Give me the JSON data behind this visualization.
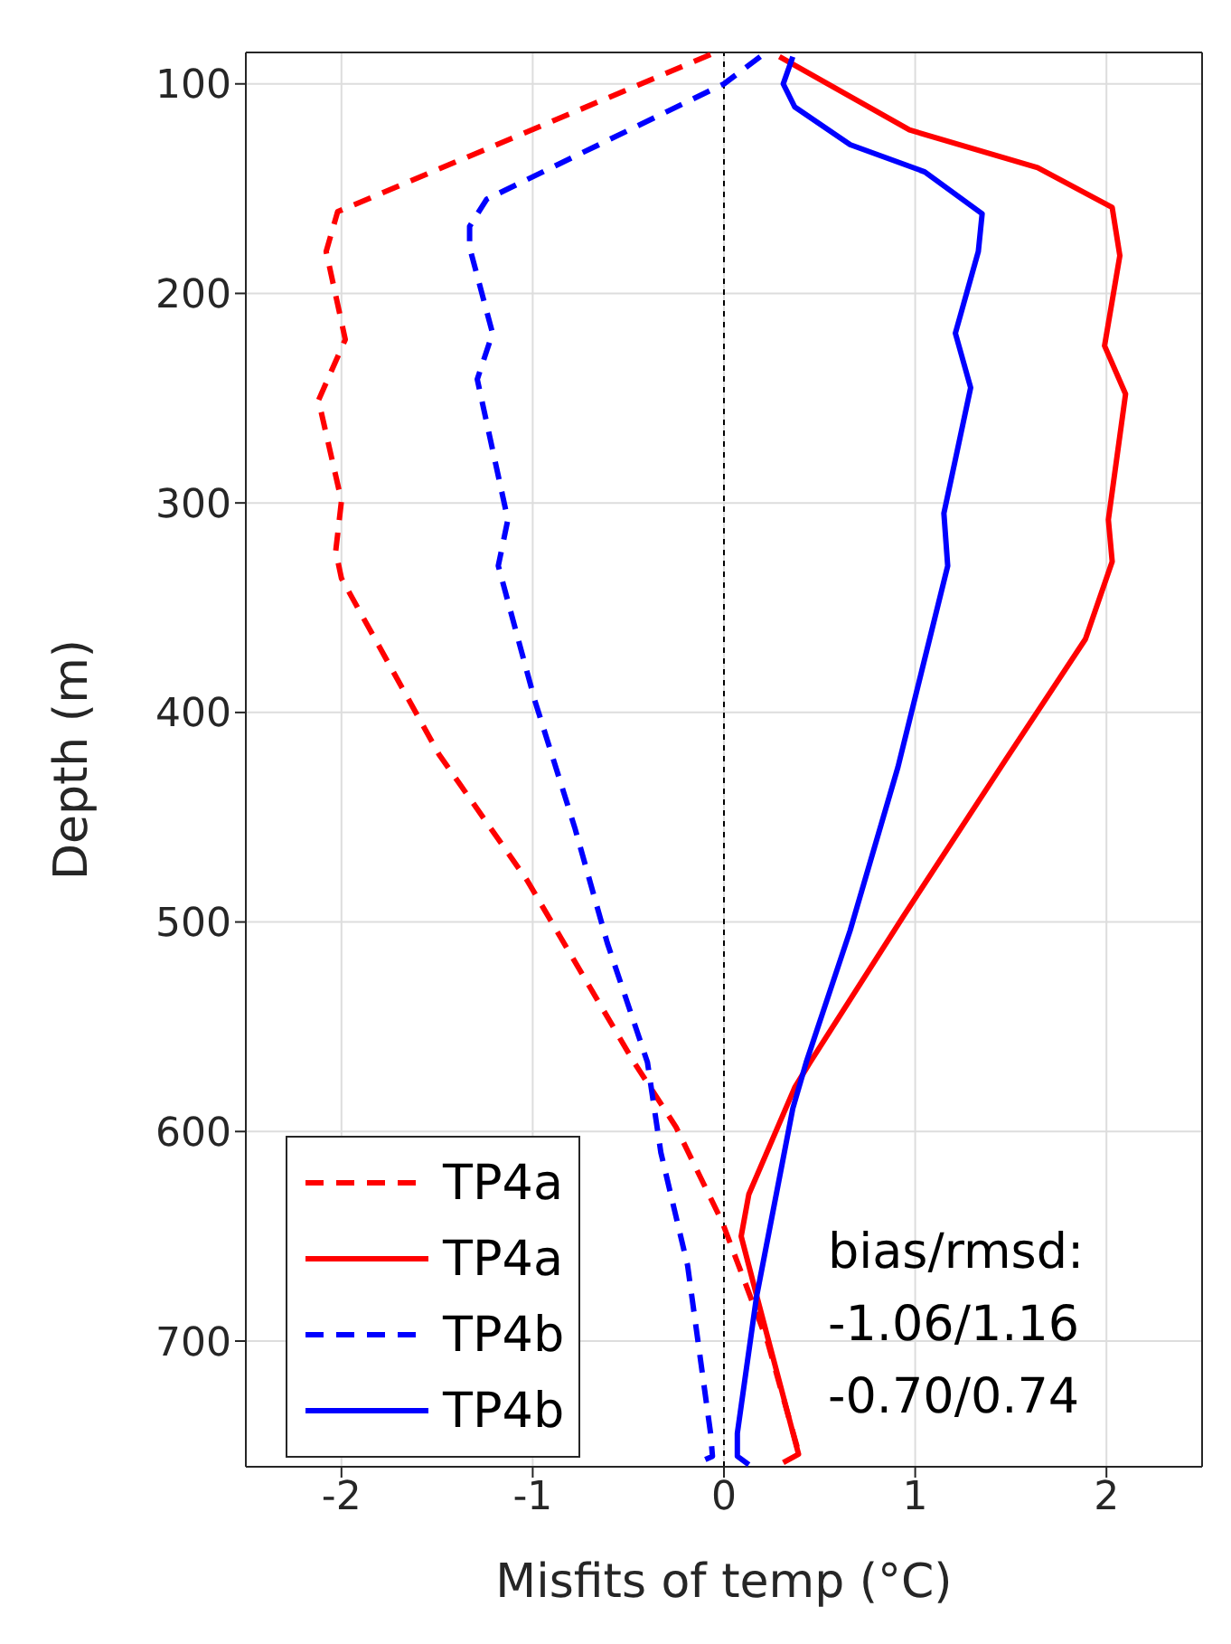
{
  "chart_data": {
    "type": "line",
    "xlabel": "Misfits of temp (°C)",
    "ylabel": "Depth (m)",
    "xlim": [
      -2.5,
      2.5
    ],
    "xticks": [
      -2,
      -1,
      0,
      1,
      2
    ],
    "ylim": [
      760,
      85
    ],
    "yticks": [
      100,
      200,
      300,
      400,
      500,
      600,
      700
    ],
    "grid": true,
    "legend": "bottom left",
    "marker": "none",
    "ref_lines": [
      {
        "axis": "x",
        "value": 0,
        "color": "#000000",
        "line_style": "dashed"
      }
    ],
    "annotations": [
      "bias/rmsd:\n-1.06/1.16\n-0.70/0.74"
    ],
    "series": [
      {
        "name": "TP4a",
        "color": "#ff0000",
        "line_style": "dashed",
        "x": [
          -0.07,
          -2.02,
          -2.08,
          -1.98,
          -2.12,
          -2.0,
          -2.03,
          -2.0,
          -1.49,
          -1.03,
          -0.47,
          -0.25,
          -0.01,
          0.23,
          0.39
        ],
        "values": [
          86,
          161,
          180,
          222,
          251,
          299,
          323,
          336,
          420,
          480,
          567,
          598,
          643,
          701,
          753
        ]
      },
      {
        "name": "TP4a",
        "color": "#ff0000",
        "line_style": "solid",
        "x": [
          0.29,
          0.97,
          1.64,
          2.03,
          2.07,
          1.99,
          2.1,
          2.01,
          2.03,
          1.89,
          1.47,
          0.94,
          0.45,
          0.37,
          0.13,
          0.09,
          0.17,
          0.39,
          0.31
        ],
        "values": [
          87,
          122,
          140,
          159,
          182,
          225,
          248,
          308,
          328,
          365,
          423,
          497,
          567,
          579,
          630,
          650,
          678,
          754,
          758
        ]
      },
      {
        "name": "TP4b",
        "color": "#0000ff",
        "line_style": "dashed",
        "x": [
          0.19,
          0,
          -1.24,
          -1.33,
          -1.33,
          -1.21,
          -1.29,
          -1.13,
          -1.18,
          -0.99,
          -0.78,
          -0.61,
          -0.4,
          -0.33,
          -0.19,
          -0.07,
          -0.06,
          -0.11
        ],
        "values": [
          87,
          100,
          155,
          168,
          178,
          219,
          241,
          308,
          330,
          394,
          455,
          510,
          567,
          610,
          664,
          744,
          755,
          757
        ]
      },
      {
        "name": "TP4b",
        "color": "#0000ff",
        "line_style": "solid",
        "x": [
          0.36,
          0.31,
          0.37,
          0.66,
          1.05,
          1.35,
          1.33,
          1.21,
          1.29,
          1.15,
          1.17,
          0.91,
          0.66,
          0.43,
          0.36,
          0.17,
          0.07,
          0.07,
          0.13
        ],
        "values": [
          87,
          100,
          111,
          129,
          142,
          162,
          180,
          219,
          245,
          305,
          330,
          426,
          504,
          567,
          589,
          679,
          744,
          755,
          759
        ]
      }
    ]
  }
}
